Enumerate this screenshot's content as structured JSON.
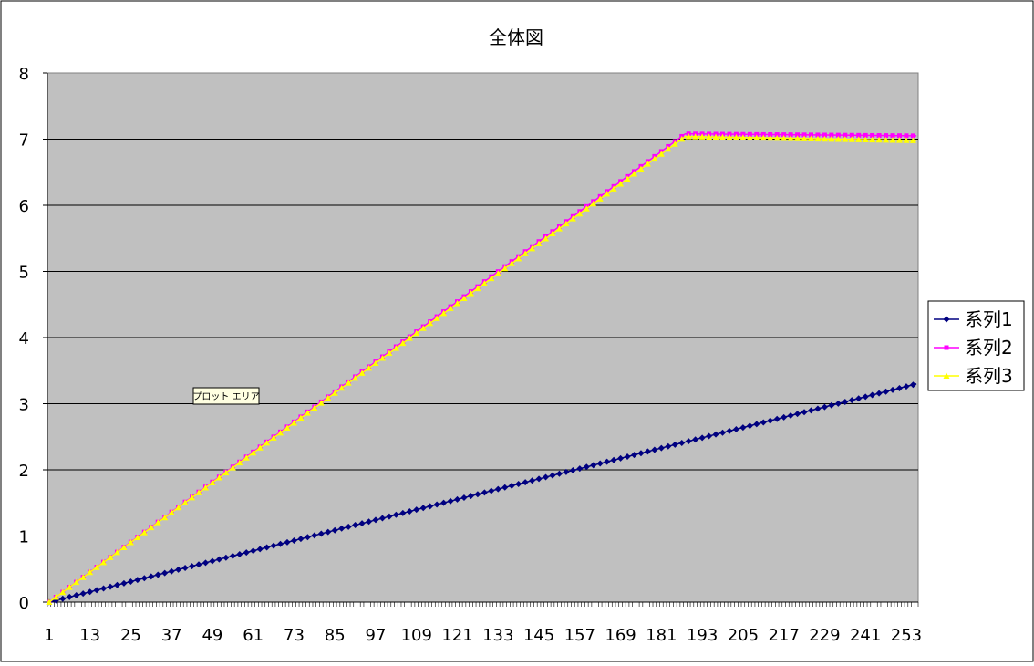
{
  "chart_data": {
    "type": "line",
    "title": "全体図",
    "xlabel": "",
    "ylabel": "",
    "x_start": 1,
    "x_end": 256,
    "x_tick_labels": [
      "1",
      "13",
      "25",
      "37",
      "49",
      "61",
      "73",
      "85",
      "97",
      "109",
      "121",
      "133",
      "145",
      "157",
      "169",
      "181",
      "193",
      "205",
      "217",
      "229",
      "241",
      "253"
    ],
    "ylim": [
      0,
      8
    ],
    "y_ticks": [
      0,
      1,
      2,
      3,
      4,
      5,
      6,
      7,
      8
    ],
    "grid": "horizontal",
    "legend_position": "right",
    "plot_area_tooltip": "プロット エリア",
    "background_color": "#c0c0c0",
    "series": [
      {
        "name": "系列1",
        "color": "#000080",
        "marker": "diamond",
        "points": [
          [
            1,
            0
          ],
          [
            256,
            3.3
          ]
        ]
      },
      {
        "name": "系列2",
        "color": "#ff00ff",
        "marker": "square",
        "points": [
          [
            1,
            0
          ],
          [
            188,
            7.08
          ],
          [
            256,
            7.05
          ]
        ]
      },
      {
        "name": "系列3",
        "color": "#ffff00",
        "marker": "triangle",
        "points": [
          [
            1,
            0
          ],
          [
            188,
            7.04
          ],
          [
            256,
            6.98
          ]
        ]
      }
    ]
  }
}
